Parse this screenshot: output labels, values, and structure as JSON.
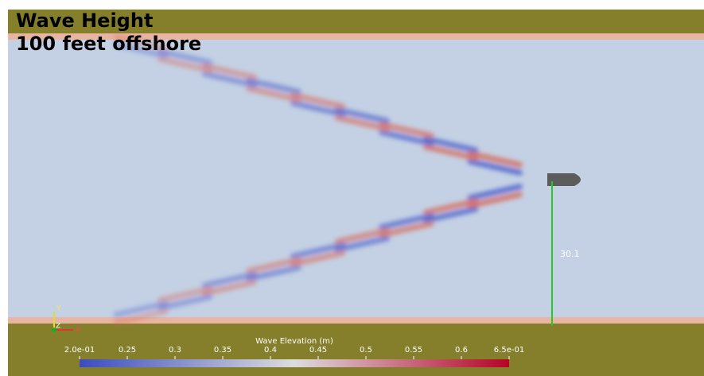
{
  "title": {
    "line1": "Wave Height",
    "line2": "100 feet offshore"
  },
  "ruler": {
    "label": 30.1
  },
  "axes_triad": {
    "y": "Y",
    "z": "Z",
    "x": "X"
  },
  "colorbar": {
    "title": "Wave Elevation (m)",
    "range": [
      0.2,
      0.65
    ],
    "colors": [
      "#3b4cc0",
      "#dddddd",
      "#b40426"
    ],
    "ticks": [
      {
        "value": 0.2,
        "label": "2.0e-01"
      },
      0.25,
      0.3,
      0.35,
      0.4,
      0.45,
      0.5,
      0.55,
      0.6,
      {
        "value": 0.65,
        "label": "6.5e-01"
      }
    ]
  }
}
